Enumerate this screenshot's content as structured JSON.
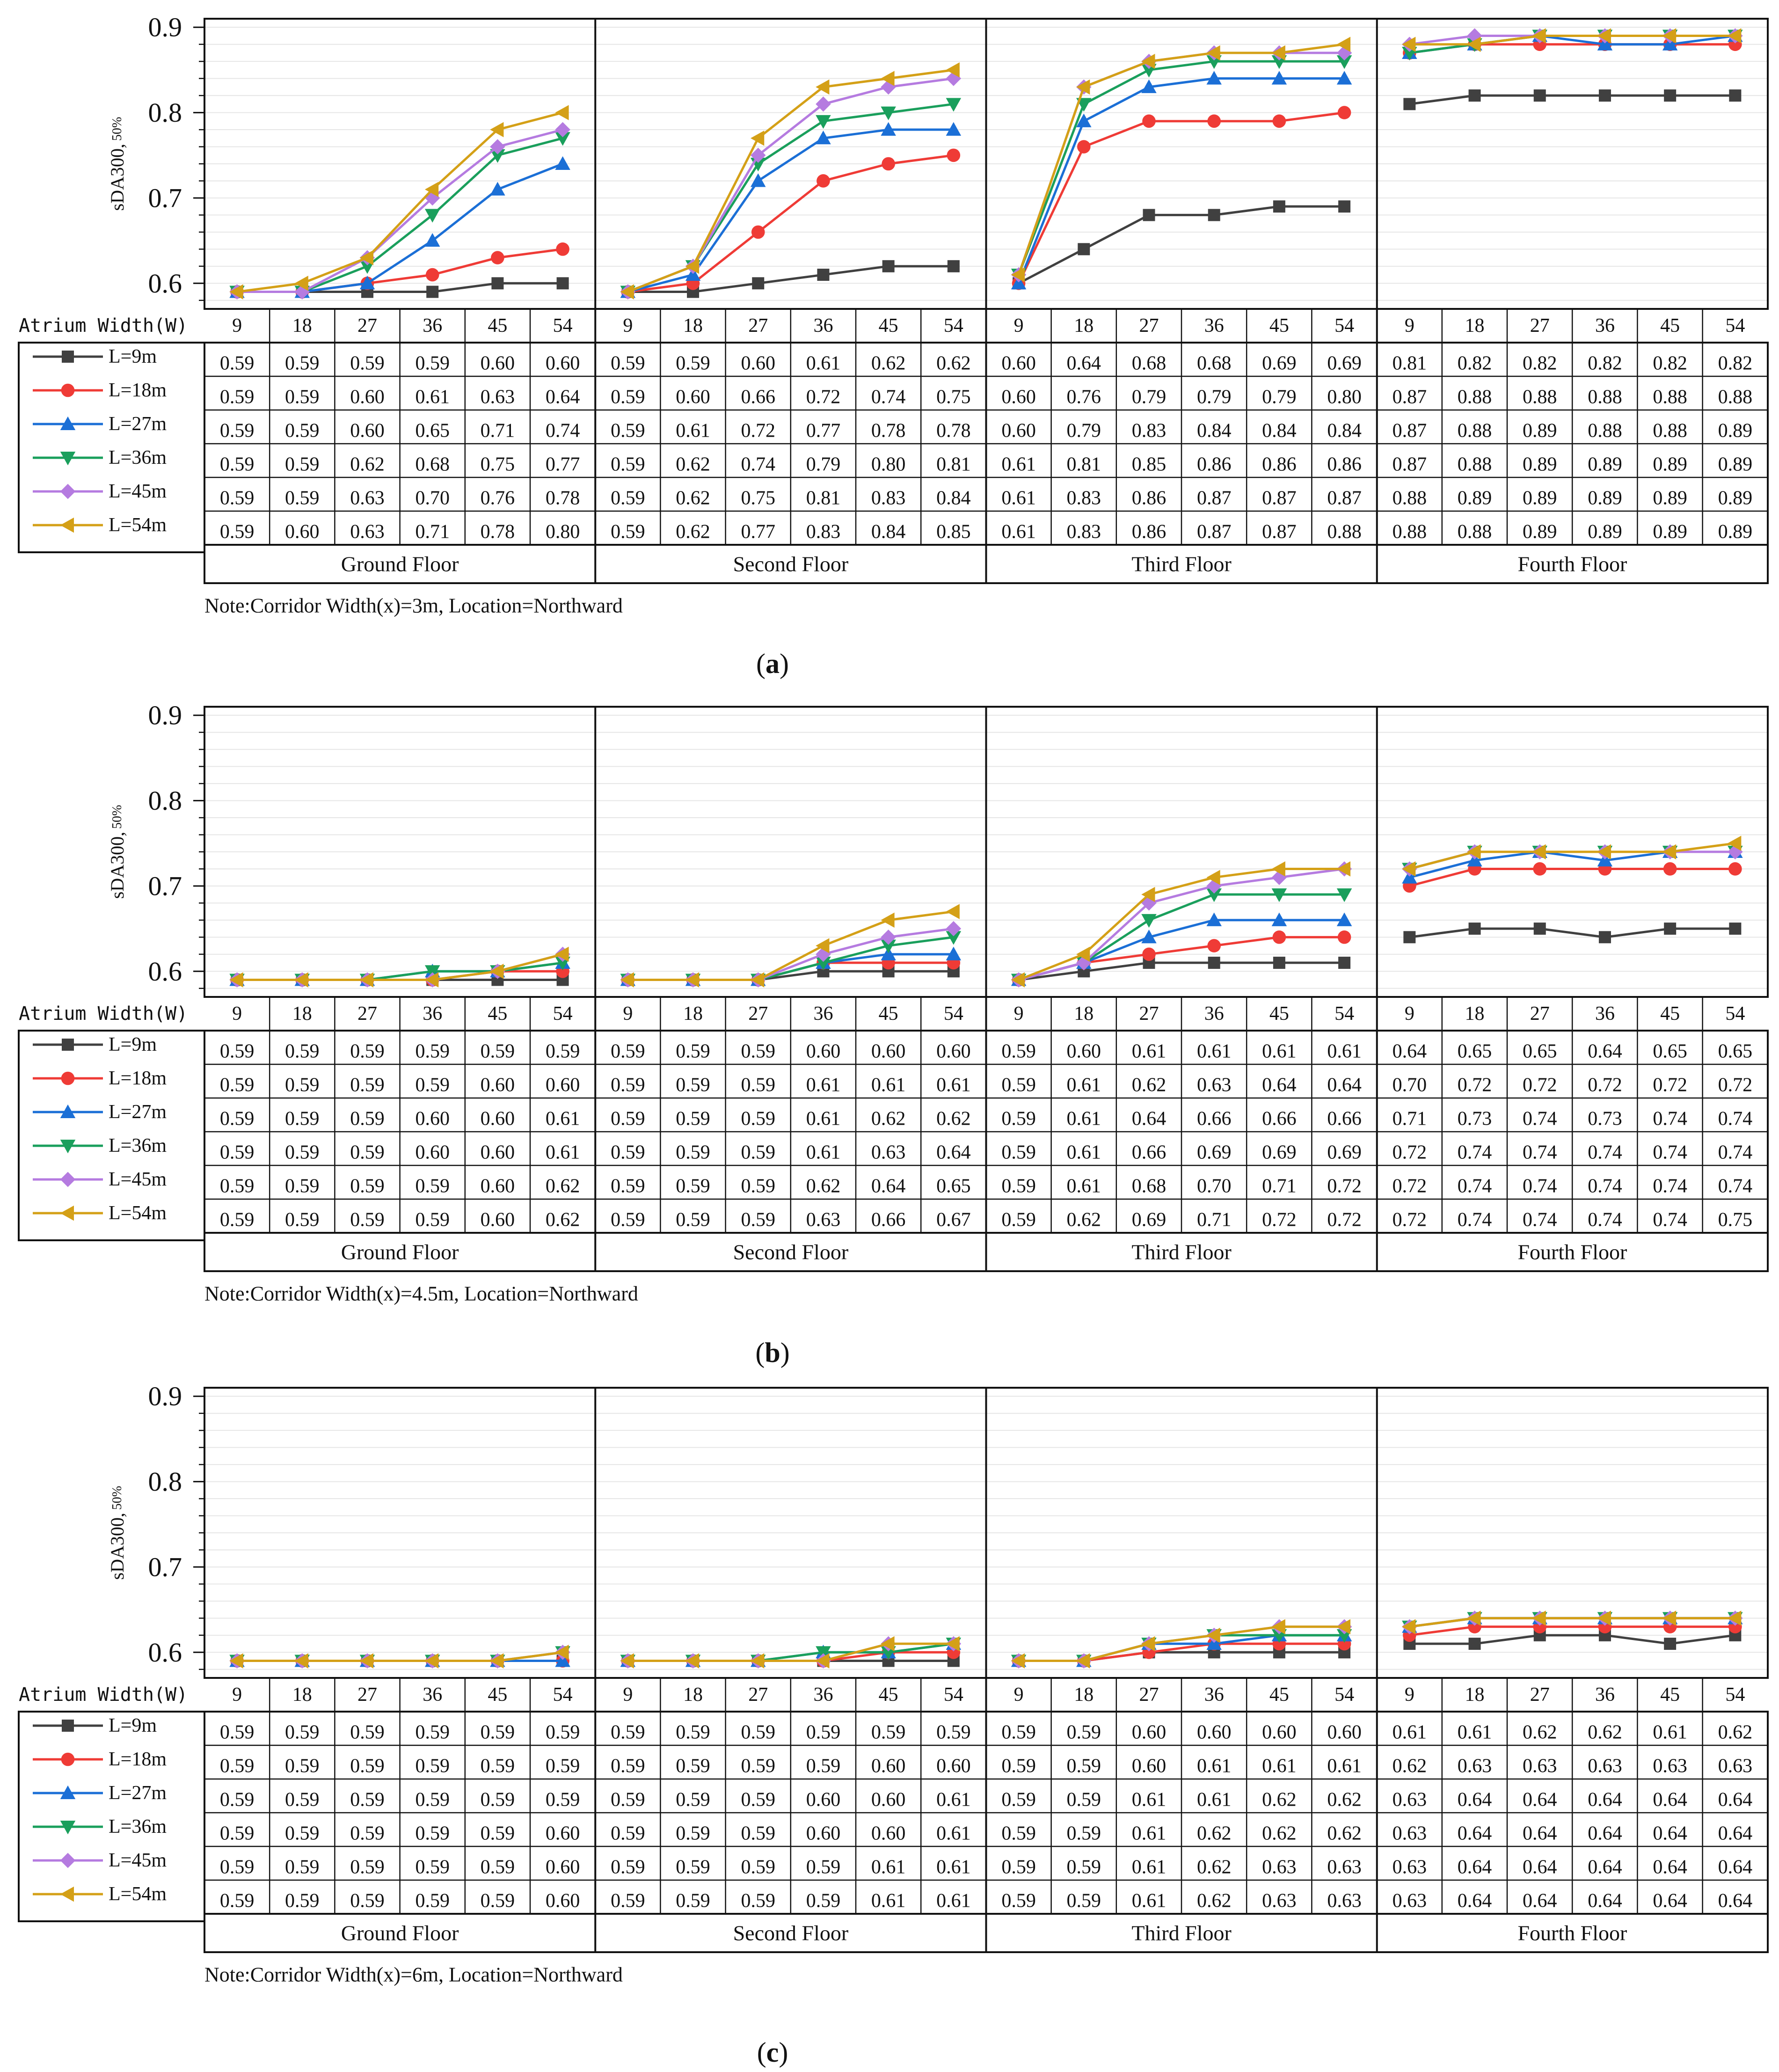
{
  "chart_data": [
    {
      "type": "line",
      "panel_label": "a",
      "ylabel_main": "sDA300,",
      "ylabel_sub": "50%",
      "ylim": [
        0.57,
        0.91
      ],
      "yticks": [
        "0.6",
        "0.7",
        "0.8",
        "0.9"
      ],
      "x_axis_label": "Atrium Width(W)",
      "categories": [
        "9",
        "18",
        "27",
        "36",
        "45",
        "54"
      ],
      "floors": [
        "Ground Floor",
        "Second Floor",
        "Third Floor",
        "Fourth Floor"
      ],
      "note": "Note:Corridor Width(x)=3m, Location=Northward",
      "series": [
        {
          "name": "L=9m",
          "values": [
            [
              "0.59",
              "0.59",
              "0.59",
              "0.59",
              "0.60",
              "0.60"
            ],
            [
              "0.59",
              "0.59",
              "0.60",
              "0.61",
              "0.62",
              "0.62"
            ],
            [
              "0.60",
              "0.64",
              "0.68",
              "0.68",
              "0.69",
              "0.69"
            ],
            [
              "0.81",
              "0.82",
              "0.82",
              "0.82",
              "0.82",
              "0.82"
            ]
          ]
        },
        {
          "name": "L=18m",
          "values": [
            [
              "0.59",
              "0.59",
              "0.60",
              "0.61",
              "0.63",
              "0.64"
            ],
            [
              "0.59",
              "0.60",
              "0.66",
              "0.72",
              "0.74",
              "0.75"
            ],
            [
              "0.60",
              "0.76",
              "0.79",
              "0.79",
              "0.79",
              "0.80"
            ],
            [
              "0.87",
              "0.88",
              "0.88",
              "0.88",
              "0.88",
              "0.88"
            ]
          ]
        },
        {
          "name": "L=27m",
          "values": [
            [
              "0.59",
              "0.59",
              "0.60",
              "0.65",
              "0.71",
              "0.74"
            ],
            [
              "0.59",
              "0.61",
              "0.72",
              "0.77",
              "0.78",
              "0.78"
            ],
            [
              "0.60",
              "0.79",
              "0.83",
              "0.84",
              "0.84",
              "0.84"
            ],
            [
              "0.87",
              "0.88",
              "0.89",
              "0.88",
              "0.88",
              "0.89"
            ]
          ]
        },
        {
          "name": "L=36m",
          "values": [
            [
              "0.59",
              "0.59",
              "0.62",
              "0.68",
              "0.75",
              "0.77"
            ],
            [
              "0.59",
              "0.62",
              "0.74",
              "0.79",
              "0.80",
              "0.81"
            ],
            [
              "0.61",
              "0.81",
              "0.85",
              "0.86",
              "0.86",
              "0.86"
            ],
            [
              "0.87",
              "0.88",
              "0.89",
              "0.89",
              "0.89",
              "0.89"
            ]
          ]
        },
        {
          "name": "L=45m",
          "values": [
            [
              "0.59",
              "0.59",
              "0.63",
              "0.70",
              "0.76",
              "0.78"
            ],
            [
              "0.59",
              "0.62",
              "0.75",
              "0.81",
              "0.83",
              "0.84"
            ],
            [
              "0.61",
              "0.83",
              "0.86",
              "0.87",
              "0.87",
              "0.87"
            ],
            [
              "0.88",
              "0.89",
              "0.89",
              "0.89",
              "0.89",
              "0.89"
            ]
          ]
        },
        {
          "name": "L=54m",
          "values": [
            [
              "0.59",
              "0.60",
              "0.63",
              "0.71",
              "0.78",
              "0.80"
            ],
            [
              "0.59",
              "0.62",
              "0.77",
              "0.83",
              "0.84",
              "0.85"
            ],
            [
              "0.61",
              "0.83",
              "0.86",
              "0.87",
              "0.87",
              "0.88"
            ],
            [
              "0.88",
              "0.88",
              "0.89",
              "0.89",
              "0.89",
              "0.89"
            ]
          ]
        }
      ]
    },
    {
      "type": "line",
      "panel_label": "b",
      "ylabel_main": "sDA300,",
      "ylabel_sub": "50%",
      "ylim": [
        0.57,
        0.91
      ],
      "yticks": [
        "0.6",
        "0.7",
        "0.8",
        "0.9"
      ],
      "x_axis_label": "Atrium Width(W)",
      "categories": [
        "9",
        "18",
        "27",
        "36",
        "45",
        "54"
      ],
      "floors": [
        "Ground Floor",
        "Second Floor",
        "Third Floor",
        "Fourth Floor"
      ],
      "note": "Note:Corridor Width(x)=4.5m, Location=Northward",
      "series": [
        {
          "name": "L=9m",
          "values": [
            [
              "0.59",
              "0.59",
              "0.59",
              "0.59",
              "0.59",
              "0.59"
            ],
            [
              "0.59",
              "0.59",
              "0.59",
              "0.60",
              "0.60",
              "0.60"
            ],
            [
              "0.59",
              "0.60",
              "0.61",
              "0.61",
              "0.61",
              "0.61"
            ],
            [
              "0.64",
              "0.65",
              "0.65",
              "0.64",
              "0.65",
              "0.65"
            ]
          ]
        },
        {
          "name": "L=18m",
          "values": [
            [
              "0.59",
              "0.59",
              "0.59",
              "0.59",
              "0.60",
              "0.60"
            ],
            [
              "0.59",
              "0.59",
              "0.59",
              "0.61",
              "0.61",
              "0.61"
            ],
            [
              "0.59",
              "0.61",
              "0.62",
              "0.63",
              "0.64",
              "0.64"
            ],
            [
              "0.70",
              "0.72",
              "0.72",
              "0.72",
              "0.72",
              "0.72"
            ]
          ]
        },
        {
          "name": "L=27m",
          "values": [
            [
              "0.59",
              "0.59",
              "0.59",
              "0.60",
              "0.60",
              "0.61"
            ],
            [
              "0.59",
              "0.59",
              "0.59",
              "0.61",
              "0.62",
              "0.62"
            ],
            [
              "0.59",
              "0.61",
              "0.64",
              "0.66",
              "0.66",
              "0.66"
            ],
            [
              "0.71",
              "0.73",
              "0.74",
              "0.73",
              "0.74",
              "0.74"
            ]
          ]
        },
        {
          "name": "L=36m",
          "values": [
            [
              "0.59",
              "0.59",
              "0.59",
              "0.60",
              "0.60",
              "0.61"
            ],
            [
              "0.59",
              "0.59",
              "0.59",
              "0.61",
              "0.63",
              "0.64"
            ],
            [
              "0.59",
              "0.61",
              "0.66",
              "0.69",
              "0.69",
              "0.69"
            ],
            [
              "0.72",
              "0.74",
              "0.74",
              "0.74",
              "0.74",
              "0.74"
            ]
          ]
        },
        {
          "name": "L=45m",
          "values": [
            [
              "0.59",
              "0.59",
              "0.59",
              "0.59",
              "0.60",
              "0.62"
            ],
            [
              "0.59",
              "0.59",
              "0.59",
              "0.62",
              "0.64",
              "0.65"
            ],
            [
              "0.59",
              "0.61",
              "0.68",
              "0.70",
              "0.71",
              "0.72"
            ],
            [
              "0.72",
              "0.74",
              "0.74",
              "0.74",
              "0.74",
              "0.74"
            ]
          ]
        },
        {
          "name": "L=54m",
          "values": [
            [
              "0.59",
              "0.59",
              "0.59",
              "0.59",
              "0.60",
              "0.62"
            ],
            [
              "0.59",
              "0.59",
              "0.59",
              "0.63",
              "0.66",
              "0.67"
            ],
            [
              "0.59",
              "0.62",
              "0.69",
              "0.71",
              "0.72",
              "0.72"
            ],
            [
              "0.72",
              "0.74",
              "0.74",
              "0.74",
              "0.74",
              "0.75"
            ]
          ]
        }
      ]
    },
    {
      "type": "line",
      "panel_label": "c",
      "ylabel_main": "sDA300,",
      "ylabel_sub": "50%",
      "ylim": [
        0.57,
        0.91
      ],
      "yticks": [
        "0.6",
        "0.7",
        "0.8",
        "0.9"
      ],
      "x_axis_label": "Atrium Width(W)",
      "categories": [
        "9",
        "18",
        "27",
        "36",
        "45",
        "54"
      ],
      "floors": [
        "Ground Floor",
        "Second Floor",
        "Third Floor",
        "Fourth Floor"
      ],
      "note": "Note:Corridor Width(x)=6m, Location=Northward",
      "series": [
        {
          "name": "L=9m",
          "values": [
            [
              "0.59",
              "0.59",
              "0.59",
              "0.59",
              "0.59",
              "0.59"
            ],
            [
              "0.59",
              "0.59",
              "0.59",
              "0.59",
              "0.59",
              "0.59"
            ],
            [
              "0.59",
              "0.59",
              "0.60",
              "0.60",
              "0.60",
              "0.60"
            ],
            [
              "0.61",
              "0.61",
              "0.62",
              "0.62",
              "0.61",
              "0.62"
            ]
          ]
        },
        {
          "name": "L=18m",
          "values": [
            [
              "0.59",
              "0.59",
              "0.59",
              "0.59",
              "0.59",
              "0.59"
            ],
            [
              "0.59",
              "0.59",
              "0.59",
              "0.59",
              "0.60",
              "0.60"
            ],
            [
              "0.59",
              "0.59",
              "0.60",
              "0.61",
              "0.61",
              "0.61"
            ],
            [
              "0.62",
              "0.63",
              "0.63",
              "0.63",
              "0.63",
              "0.63"
            ]
          ]
        },
        {
          "name": "L=27m",
          "values": [
            [
              "0.59",
              "0.59",
              "0.59",
              "0.59",
              "0.59",
              "0.59"
            ],
            [
              "0.59",
              "0.59",
              "0.59",
              "0.60",
              "0.60",
              "0.61"
            ],
            [
              "0.59",
              "0.59",
              "0.61",
              "0.61",
              "0.62",
              "0.62"
            ],
            [
              "0.63",
              "0.64",
              "0.64",
              "0.64",
              "0.64",
              "0.64"
            ]
          ]
        },
        {
          "name": "L=36m",
          "values": [
            [
              "0.59",
              "0.59",
              "0.59",
              "0.59",
              "0.59",
              "0.60"
            ],
            [
              "0.59",
              "0.59",
              "0.59",
              "0.60",
              "0.60",
              "0.61"
            ],
            [
              "0.59",
              "0.59",
              "0.61",
              "0.62",
              "0.62",
              "0.62"
            ],
            [
              "0.63",
              "0.64",
              "0.64",
              "0.64",
              "0.64",
              "0.64"
            ]
          ]
        },
        {
          "name": "L=45m",
          "values": [
            [
              "0.59",
              "0.59",
              "0.59",
              "0.59",
              "0.59",
              "0.60"
            ],
            [
              "0.59",
              "0.59",
              "0.59",
              "0.59",
              "0.61",
              "0.61"
            ],
            [
              "0.59",
              "0.59",
              "0.61",
              "0.62",
              "0.63",
              "0.63"
            ],
            [
              "0.63",
              "0.64",
              "0.64",
              "0.64",
              "0.64",
              "0.64"
            ]
          ]
        },
        {
          "name": "L=54m",
          "values": [
            [
              "0.59",
              "0.59",
              "0.59",
              "0.59",
              "0.59",
              "0.60"
            ],
            [
              "0.59",
              "0.59",
              "0.59",
              "0.59",
              "0.61",
              "0.61"
            ],
            [
              "0.59",
              "0.59",
              "0.61",
              "0.62",
              "0.63",
              "0.63"
            ],
            [
              "0.63",
              "0.64",
              "0.64",
              "0.64",
              "0.64",
              "0.64"
            ]
          ]
        }
      ]
    }
  ],
  "series_styles": [
    {
      "color": "#404040",
      "marker": "square"
    },
    {
      "color": "#ef3b36",
      "marker": "circle"
    },
    {
      "color": "#1b6fd6",
      "marker": "triangle-up"
    },
    {
      "color": "#1a9f5c",
      "marker": "triangle-down"
    },
    {
      "color": "#b57be0",
      "marker": "diamond"
    },
    {
      "color": "#d4a017",
      "marker": "triangle-left"
    }
  ]
}
